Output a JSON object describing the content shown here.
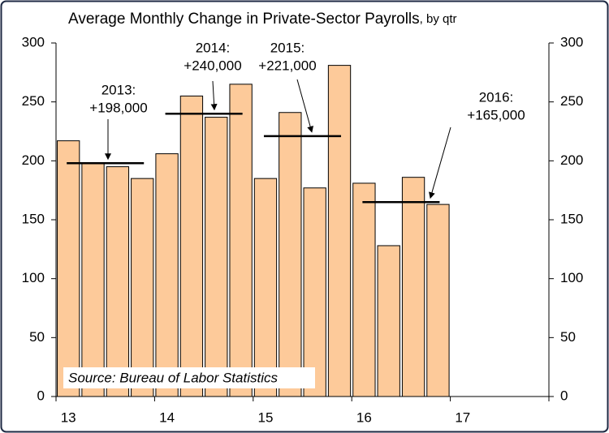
{
  "chart_data": {
    "type": "bar",
    "title": "Average Monthly Change in Private-Sector Payrolls",
    "subtitle": ", by qtr",
    "categories": [
      "13",
      null,
      null,
      null,
      "14",
      null,
      null,
      null,
      "15",
      null,
      null,
      null,
      "16",
      null,
      null,
      null,
      "17",
      null,
      null,
      null
    ],
    "values": [
      217,
      198,
      195,
      185,
      206,
      255,
      237,
      265,
      185,
      241,
      177,
      281,
      181,
      128,
      186,
      163,
      null,
      null,
      null,
      null
    ],
    "color": "#fdca9a",
    "ylim": [
      0,
      300
    ],
    "yticks": [
      0,
      50,
      100,
      150,
      200,
      250,
      300
    ],
    "y2lim": [
      0,
      300
    ],
    "y2ticks": [
      0,
      50,
      100,
      150,
      200,
      250,
      300
    ],
    "grid": false,
    "annotations": [
      {
        "lines": [
          "2013:",
          "+198,000"
        ],
        "value": 198
      },
      {
        "lines": [
          "2014:",
          "+240,000"
        ],
        "value": 240
      },
      {
        "lines": [
          "2015:",
          "+221,000"
        ],
        "value": 221
      },
      {
        "lines": [
          "2016:",
          "+165,000"
        ],
        "value": 165
      }
    ],
    "source": "Source: Bureau of Labor Statistics"
  }
}
